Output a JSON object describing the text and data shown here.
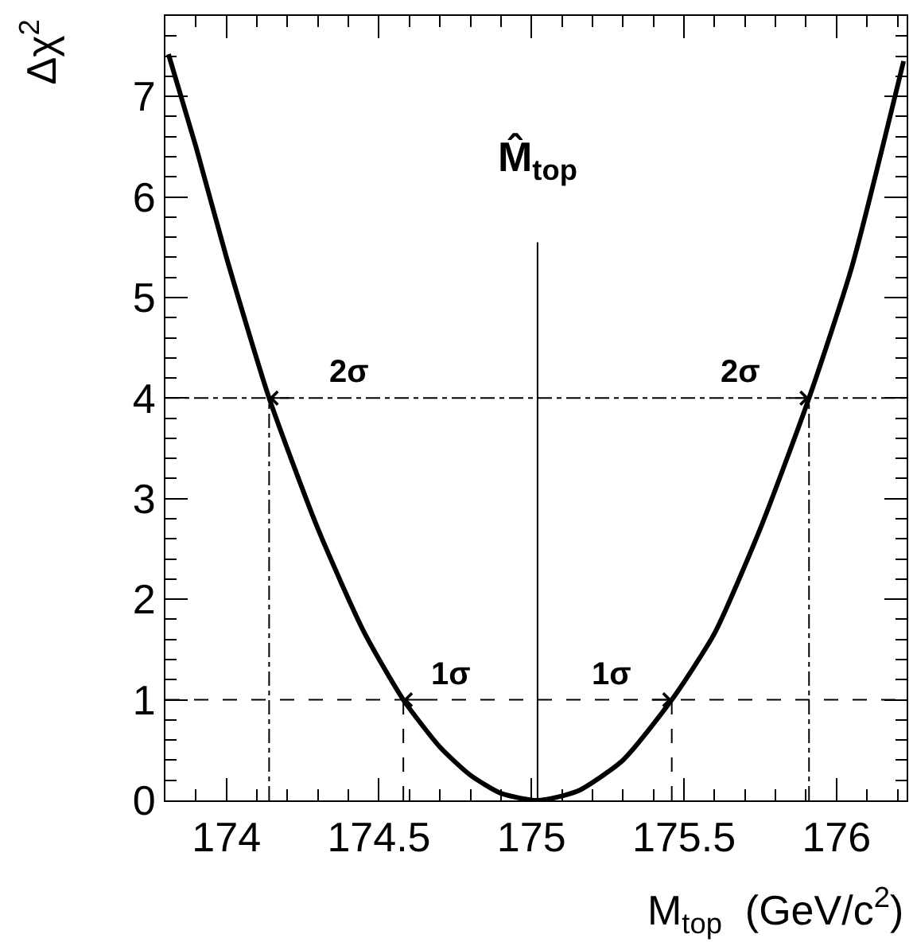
{
  "chart_data": {
    "type": "line",
    "xlabel": "M$_{top}$  (GeV/c$^{2}$)",
    "ylabel": "Δχ$^{2}$",
    "xlim": [
      173.8,
      176.23
    ],
    "ylim": [
      0,
      7.8
    ],
    "xticks": [
      174,
      174.5,
      175,
      175.5,
      176
    ],
    "yticks": [
      0,
      1,
      2,
      3,
      4,
      5,
      6,
      7
    ],
    "series": [
      {
        "color": "#000000",
        "line_style": "solid",
        "x": [
          173.81,
          173.9,
          174.0,
          174.14,
          174.3,
          174.45,
          174.58,
          174.7,
          174.8,
          174.9,
          175.02,
          175.15,
          175.3,
          175.46,
          175.6,
          175.75,
          175.91,
          176.05,
          176.22
        ],
        "values": [
          7.42,
          6.5,
          5.4,
          4.0,
          2.7,
          1.68,
          1.0,
          0.53,
          0.25,
          0.07,
          0.0,
          0.09,
          0.4,
          1.0,
          1.66,
          2.7,
          4.0,
          5.3,
          7.35
        ]
      },
      {
        "color": "#000000",
        "line_style": "dashdot",
        "x": [
          174.14,
          174.14
        ],
        "values": [
          0,
          4
        ]
      },
      {
        "color": "#000000",
        "line_style": "dashed",
        "x": [
          174.58,
          174.58
        ],
        "values": [
          0,
          1
        ]
      },
      {
        "color": "#000000",
        "line_style": "dashed",
        "x": [
          175.46,
          175.46
        ],
        "values": [
          0,
          1
        ]
      },
      {
        "color": "#000000",
        "line_style": "dashdot",
        "x": [
          175.91,
          175.91
        ],
        "values": [
          0,
          4
        ]
      },
      {
        "color": "#000000",
        "line_style": "solid",
        "x": [
          175.02,
          175.02
        ],
        "values": [
          0,
          5.55
        ]
      }
    ],
    "ref_lines": [
      {
        "axis": "y",
        "value": 4,
        "line_style": "dashdot",
        "color": "#000000"
      },
      {
        "axis": "y",
        "value": 1,
        "line_style": "dashed",
        "color": "#000000"
      }
    ],
    "annotations": [
      "2σ",
      "2σ",
      "1σ",
      "1σ",
      "M̂$_{top}$"
    ]
  }
}
